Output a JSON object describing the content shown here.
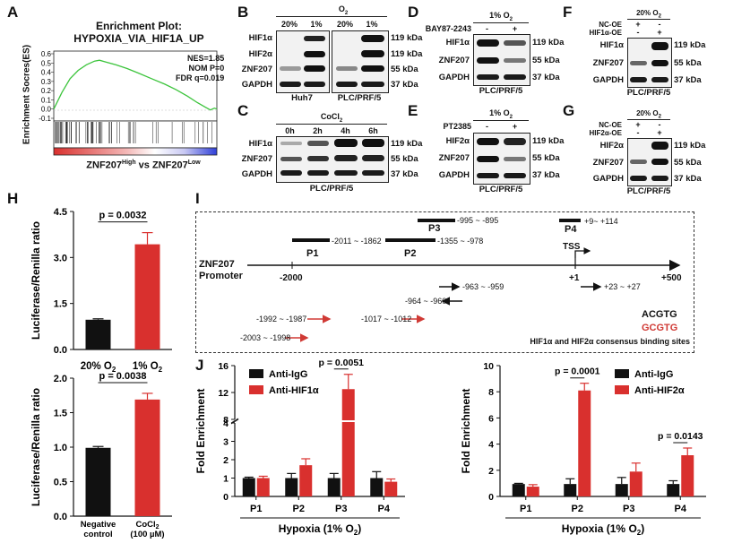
{
  "panels": {
    "A": "A",
    "B": "B",
    "C": "C",
    "D": "D",
    "E": "E",
    "F": "F",
    "G": "G",
    "H": "H",
    "I": "I",
    "J": "J"
  },
  "gsea": {
    "title_line1": "Enrichment Plot:",
    "title_line2": "HYPOXIA_VIA_HIF1A_UP",
    "ylabel": "Enrichment Socres(ES)",
    "yticks": [
      "0.6",
      "0.5",
      "0.4",
      "0.3",
      "0.2",
      "0.1",
      "0.0",
      "-0.1"
    ],
    "stats": [
      "NES=1.85",
      "NOM P=0",
      "FDR q=0.019"
    ],
    "comparison": "ZNF207",
    "high_sup": "High",
    "vs": " vs ZNF207",
    "low_sup": "Low",
    "colors": {
      "curve": "#3cc43c",
      "red": "#d9302e",
      "blue": "#2f3fd8"
    }
  },
  "blotB": {
    "header": "O",
    "header_sub": "2",
    "conditions": [
      "20%",
      "1%",
      "20%",
      "1%"
    ],
    "rows": [
      "HIF1α",
      "HIF2α",
      "ZNF207",
      "GAPDH"
    ],
    "kda": [
      "119 kDa",
      "119 kDa",
      "55 kDa",
      "37 kDa"
    ],
    "cells": [
      "Huh7",
      "PLC/PRF/5"
    ]
  },
  "blotC": {
    "header": "CoCl",
    "header_sub": "2",
    "conditions": [
      "0h",
      "2h",
      "4h",
      "6h"
    ],
    "rows": [
      "HIF1α",
      "ZNF207",
      "GAPDH"
    ],
    "kda": [
      "119 kDa",
      "55 kDa",
      "37 kDa"
    ],
    "cell": "PLC/PRF/5"
  },
  "blotD": {
    "header": "1% O",
    "header_sub": "2",
    "treatment": "BAY87-2243",
    "signs": [
      "-",
      "+"
    ],
    "rows": [
      "HIF1α",
      "ZNF207",
      "GAPDH"
    ],
    "kda": [
      "119 kDa",
      "55 kDa",
      "37 kDa"
    ],
    "cell": "PLC/PRF/5"
  },
  "blotE": {
    "header": "1% O",
    "header_sub": "2",
    "treatment": "PT2385",
    "signs": [
      "-",
      "+"
    ],
    "rows": [
      "HIF2α",
      "ZNF207",
      "GAPDH"
    ],
    "kda": [
      "119 kDa",
      "55 kDa",
      "37 kDa"
    ],
    "cell": "PLC/PRF/5"
  },
  "blotF": {
    "header": "20% O",
    "header_sub": "2",
    "treat1": "NC-OE",
    "treat2": "HIF1α-OE",
    "signs1": [
      "+",
      "-"
    ],
    "signs2": [
      "-",
      "+"
    ],
    "rows": [
      "HIF1α",
      "ZNF207",
      "GAPDH"
    ],
    "kda": [
      "119 kDa",
      "55 kDa",
      "37 kDa"
    ],
    "cell": "PLC/PRF/5"
  },
  "blotG": {
    "header": "20% O",
    "header_sub": "2",
    "treat1": "NC-OE",
    "treat2": "HIF2α-OE",
    "signs1": [
      "+",
      "-"
    ],
    "signs2": [
      "-",
      "+"
    ],
    "rows": [
      "HIF2α",
      "ZNF207",
      "GAPDH"
    ],
    "kda": [
      "119 kDa",
      "55 kDa",
      "37 kDa"
    ],
    "cell": "PLC/PRF/5"
  },
  "promoter": {
    "label_line1": "ZNF207",
    "label_line2": "Promoter",
    "axis_labels": [
      "-2000",
      "+1",
      "+500"
    ],
    "tss": "TSS",
    "regions": [
      {
        "name": "P1",
        "range": "-2011 ~ -1862"
      },
      {
        "name": "P2",
        "range": "-1355 ~ -978"
      },
      {
        "name": "P3",
        "range": "-995 ~ -895"
      },
      {
        "name": "P4",
        "range": "+9~ +114"
      }
    ],
    "black_sites": [
      "-963 ~ -959",
      "-964 ~ -960",
      "+23 ~ +27"
    ],
    "red_sites": [
      "-1992 ~ -1987",
      "-1017 ~ -1012",
      "-2003 ~ -1998"
    ],
    "legend_black": "ACGTG",
    "legend_red": "GCGTG",
    "legend_caption": "HIF1α and HIF2α consensus binding sites",
    "colors": {
      "black": "#111111",
      "red": "#d03a35"
    }
  },
  "chart_data": [
    {
      "id": "H-top",
      "type": "bar",
      "categories": [
        "20% O2",
        "1% O2"
      ],
      "values": [
        0.97,
        3.43
      ],
      "errors": [
        0.03,
        0.38
      ],
      "ylabel": "Luciferase/Renilla ratio",
      "ylim": [
        0,
        4.5
      ],
      "yticks": [
        "0.0",
        "1.5",
        "3.0",
        "4.5"
      ],
      "pvalue": "p = 0.0032",
      "colors": [
        "#111111",
        "#d9302e"
      ]
    },
    {
      "id": "H-bottom",
      "type": "bar",
      "categories": [
        "Negative control",
        "CoCl2 (100 µM)"
      ],
      "cat_lines": [
        [
          "Negative",
          "control"
        ],
        [
          "CoCl",
          "(100 µM)"
        ]
      ],
      "values": [
        0.99,
        1.69
      ],
      "errors": [
        0.02,
        0.09
      ],
      "ylabel": "Luciferase/Renilla ratio",
      "ylim": [
        0,
        2.0
      ],
      "yticks": [
        "0.0",
        "0.5",
        "1.0",
        "1.5",
        "2.0"
      ],
      "pvalue": "p = 0.0038",
      "colors": [
        "#111111",
        "#d9302e"
      ]
    },
    {
      "id": "J-left",
      "type": "bar",
      "categories": [
        "P1",
        "P2",
        "P3",
        "P4"
      ],
      "series": [
        {
          "name": "Anti-IgG",
          "values": [
            1.0,
            1.0,
            1.0,
            1.0
          ],
          "errors": [
            0.05,
            0.25,
            0.25,
            0.35
          ]
        },
        {
          "name": "Anti-HIF1α",
          "values": [
            1.0,
            1.7,
            12.5,
            0.8
          ],
          "errors": [
            0.1,
            0.35,
            2.2,
            0.15
          ]
        }
      ],
      "ylabel": "Fold Enrichment",
      "xlabel": "Hypoxia (1% O2)",
      "xlabel_main": "Hypoxia (1% O",
      "xlabel_sub": "2",
      "xlabel_end": ")",
      "ylim": [
        0,
        16
      ],
      "axis_break": [
        4,
        8
      ],
      "yticks_low": [
        "0",
        "1",
        "2",
        "3",
        "4"
      ],
      "yticks_high": [
        "8",
        "12",
        "16"
      ],
      "pvalue": "p = 0.0051",
      "colors": [
        "#111111",
        "#d9302e"
      ]
    },
    {
      "id": "J-right",
      "type": "bar",
      "categories": [
        "P1",
        "P2",
        "P3",
        "P4"
      ],
      "series": [
        {
          "name": "Anti-IgG",
          "values": [
            0.95,
            0.95,
            0.95,
            0.95
          ],
          "errors": [
            0.05,
            0.4,
            0.5,
            0.25
          ]
        },
        {
          "name": "Anti-HIF2α",
          "values": [
            0.75,
            8.1,
            1.9,
            3.15
          ],
          "errors": [
            0.15,
            0.55,
            0.65,
            0.55
          ]
        }
      ],
      "ylabel": "Fold Enrichment",
      "xlabel": "Hypoxia (1% O2)",
      "xlabel_main": "Hypoxia (1% O",
      "xlabel_sub": "2",
      "xlabel_end": ")",
      "ylim": [
        0,
        10
      ],
      "yticks": [
        "0",
        "2",
        "4",
        "6",
        "8",
        "10"
      ],
      "pvalues": [
        "p = 0.0001",
        "p = 0.0143"
      ],
      "colors": [
        "#111111",
        "#d9302e"
      ]
    }
  ]
}
